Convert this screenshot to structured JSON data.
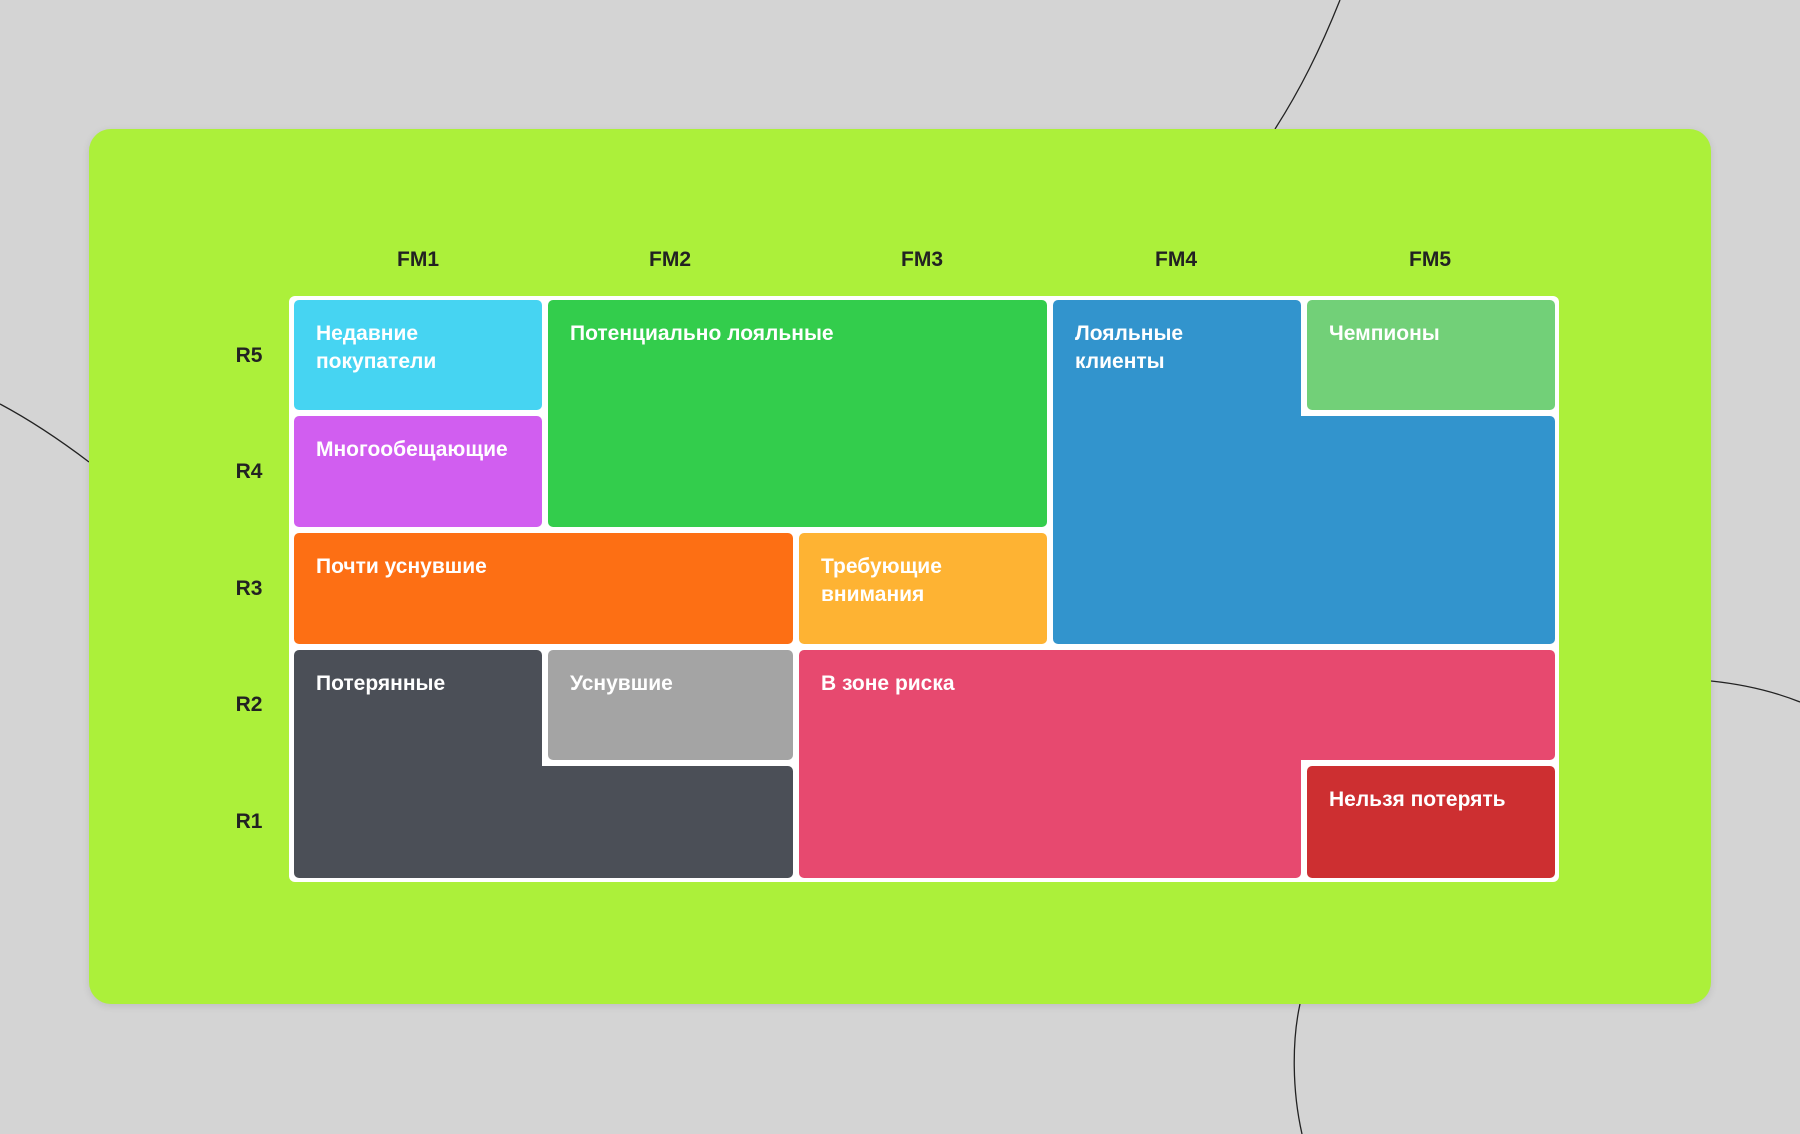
{
  "columns": [
    "FM1",
    "FM2",
    "FM3",
    "FM4",
    "FM5"
  ],
  "rows": [
    "R5",
    "R4",
    "R3",
    "R2",
    "R1"
  ],
  "segments": {
    "recent": {
      "label": "Недавние\nпокупатели",
      "color": "#46d4f2"
    },
    "promising": {
      "label": "Многообещающие",
      "color": "#d15ef0"
    },
    "potential_loyal": {
      "label": "Потенциально лояльные",
      "color": "#33cd4c"
    },
    "loyal": {
      "label": "Лояльные\nклиенты",
      "color": "#3294cd"
    },
    "champions": {
      "label": "Чемпионы",
      "color": "#72d078"
    },
    "almost_asleep": {
      "label": "Почти уснувшие",
      "color": "#fd6f14"
    },
    "need_attention": {
      "label": "Требующие\nвнимания",
      "color": "#feb333"
    },
    "lost": {
      "label": "Потерянные",
      "color": "#4b4f57"
    },
    "asleep": {
      "label": "Уснувшие",
      "color": "#a4a4a4"
    },
    "at_risk": {
      "label": "В зоне риска",
      "color": "#e7496f"
    },
    "cannot_lose": {
      "label": "Нельзя потерять",
      "color": "#cd2f31"
    }
  }
}
